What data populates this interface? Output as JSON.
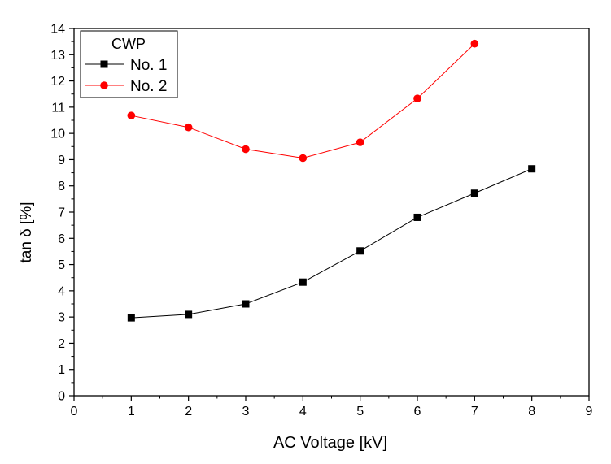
{
  "chart_data": {
    "type": "line",
    "xlabel": "AC Voltage [kV]",
    "ylabel": "tan δ [%]",
    "xlim": [
      0,
      9
    ],
    "ylim": [
      0,
      14
    ],
    "xticks": [
      "0",
      "1",
      "2",
      "3",
      "4",
      "5",
      "6",
      "7",
      "8",
      "9"
    ],
    "yticks": [
      "0",
      "1",
      "2",
      "3",
      "4",
      "5",
      "6",
      "7",
      "8",
      "9",
      "10",
      "11",
      "12",
      "13",
      "14"
    ],
    "grid": false,
    "legend": {
      "title": "CWP",
      "position": "top-left"
    },
    "series": [
      {
        "name": "No. 1",
        "color": "#000000",
        "marker": "square",
        "x": [
          1,
          2,
          3,
          4,
          5,
          6,
          7,
          8
        ],
        "y": [
          2.97,
          3.1,
          3.5,
          4.33,
          5.52,
          6.8,
          7.72,
          8.65
        ]
      },
      {
        "name": "No. 2",
        "color": "#ff0000",
        "marker": "circle",
        "x": [
          1,
          2,
          3,
          4,
          5,
          6,
          7
        ],
        "y": [
          10.68,
          10.23,
          9.4,
          9.06,
          9.66,
          11.33,
          13.42
        ]
      }
    ]
  }
}
